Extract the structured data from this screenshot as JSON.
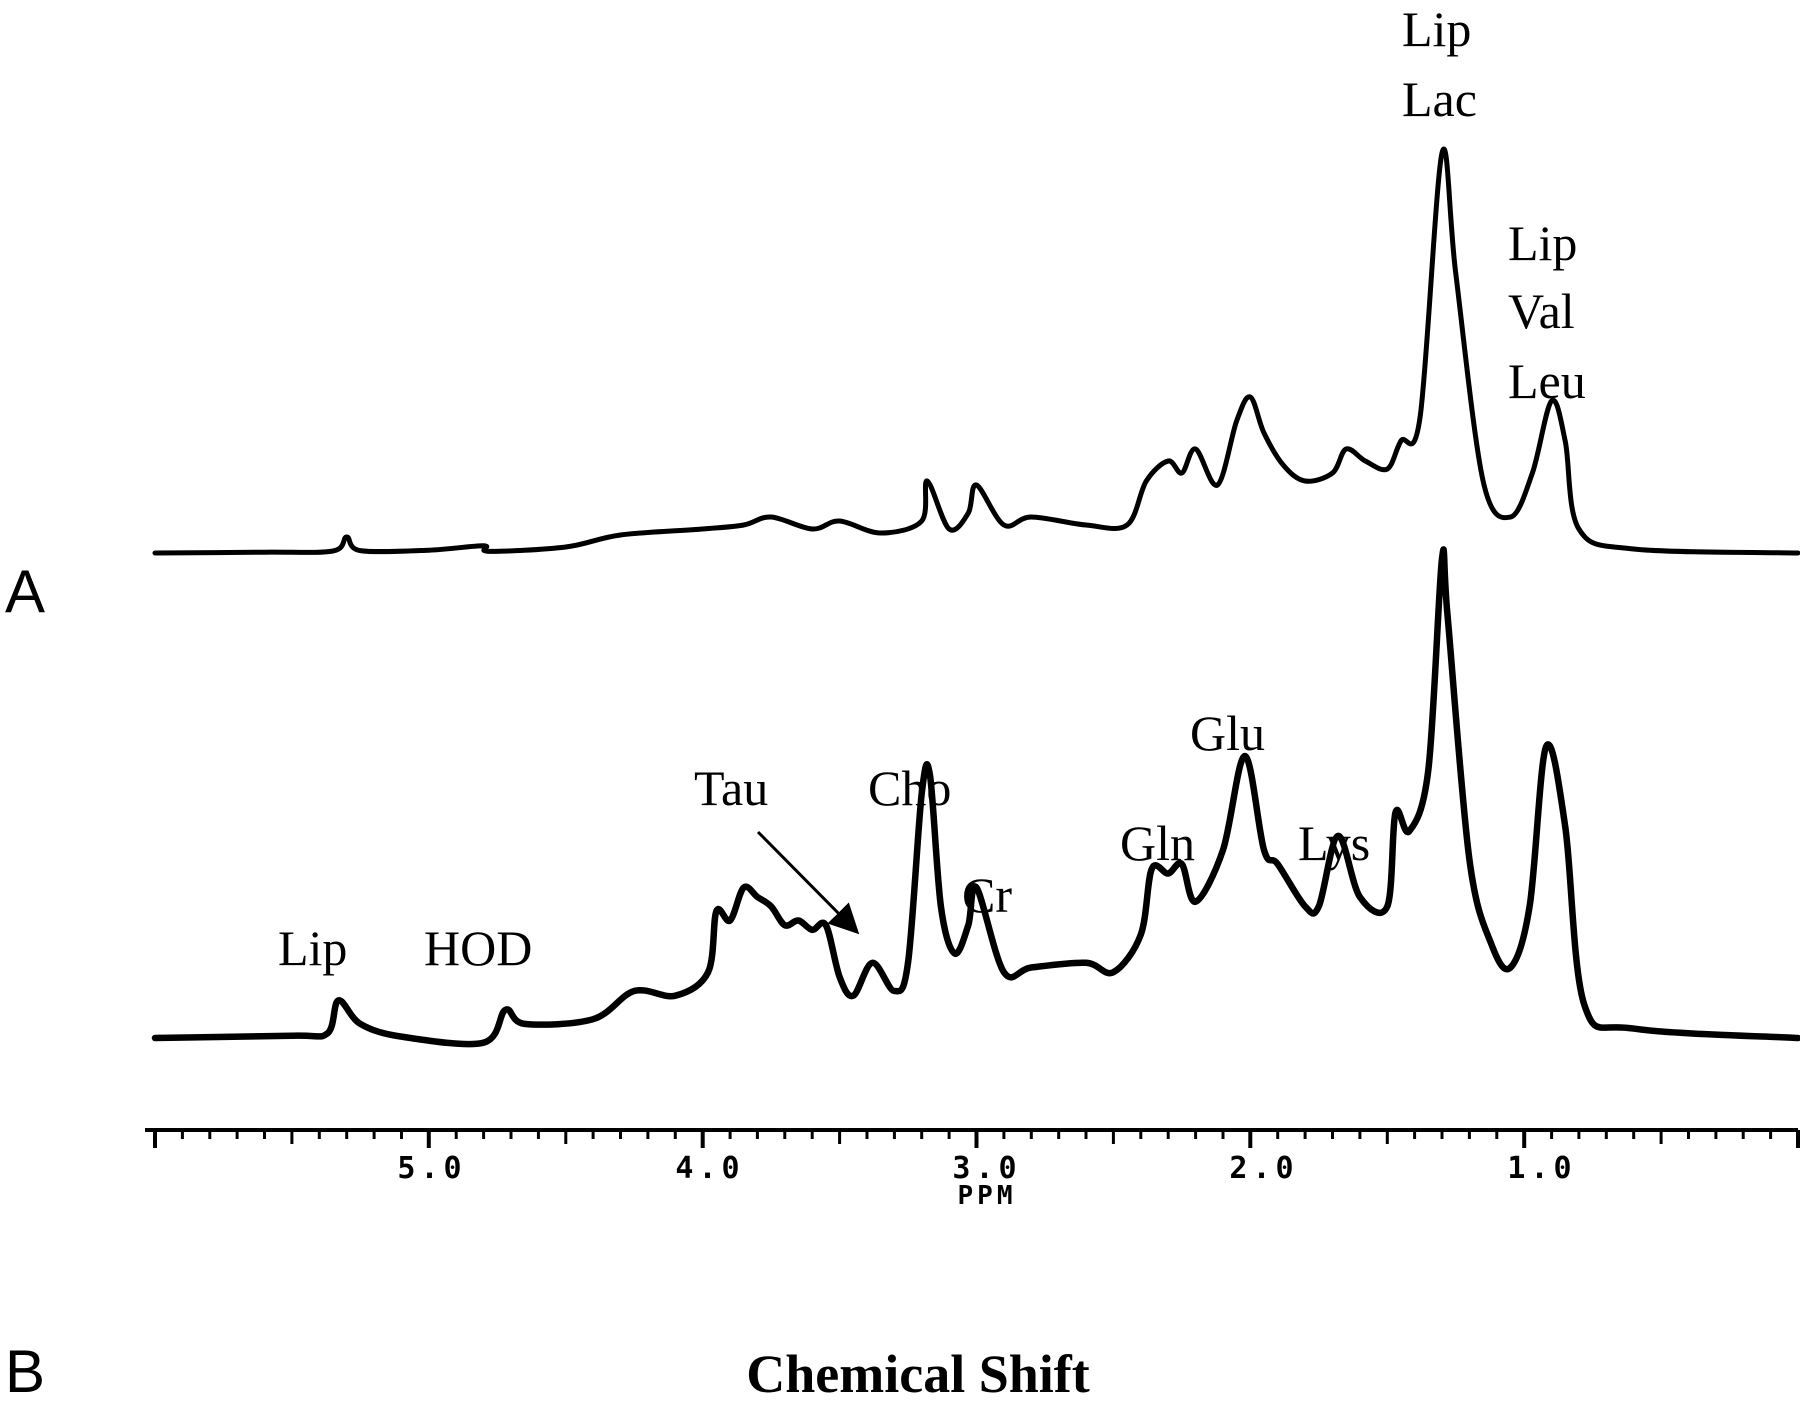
{
  "chart_data": {
    "type": "line",
    "xlabel": "Chemical Shift",
    "axis_unit": "PPM",
    "xlim": [
      6.0,
      0.0
    ],
    "x_reversed": true,
    "x_ticks": [
      "5.0",
      "4.0",
      "3.0",
      "2.0",
      "1.0"
    ],
    "grid": false,
    "series": [
      {
        "panel": "A",
        "points": [
          [
            6.0,
            0
          ],
          [
            5.6,
            0.2
          ],
          [
            5.35,
            0.5
          ],
          [
            5.3,
            4
          ],
          [
            5.25,
            0.6
          ],
          [
            5.0,
            0.7
          ],
          [
            4.8,
            1.8
          ],
          [
            4.78,
            0.4
          ],
          [
            4.5,
            1.5
          ],
          [
            4.3,
            4.5
          ],
          [
            4.0,
            6
          ],
          [
            3.85,
            7
          ],
          [
            3.75,
            9
          ],
          [
            3.6,
            6
          ],
          [
            3.5,
            8
          ],
          [
            3.35,
            5
          ],
          [
            3.2,
            8
          ],
          [
            3.18,
            18
          ],
          [
            3.1,
            6
          ],
          [
            3.03,
            10
          ],
          [
            3.0,
            17
          ],
          [
            2.9,
            7
          ],
          [
            2.8,
            9
          ],
          [
            2.6,
            7
          ],
          [
            2.45,
            7
          ],
          [
            2.38,
            18
          ],
          [
            2.3,
            23
          ],
          [
            2.25,
            20
          ],
          [
            2.2,
            26
          ],
          [
            2.12,
            17
          ],
          [
            2.05,
            33
          ],
          [
            2.0,
            39
          ],
          [
            1.95,
            30
          ],
          [
            1.88,
            22
          ],
          [
            1.8,
            18
          ],
          [
            1.7,
            20
          ],
          [
            1.65,
            26
          ],
          [
            1.58,
            23
          ],
          [
            1.5,
            21
          ],
          [
            1.45,
            28
          ],
          [
            1.38,
            34
          ],
          [
            1.3,
            100
          ],
          [
            1.25,
            70
          ],
          [
            1.15,
            18
          ],
          [
            1.05,
            9
          ],
          [
            0.97,
            20
          ],
          [
            0.9,
            38
          ],
          [
            0.85,
            28
          ],
          [
            0.8,
            6
          ],
          [
            0.6,
            1
          ],
          [
            0.0,
            0
          ]
        ]
      },
      {
        "panel": "B",
        "points": [
          [
            6.0,
            0
          ],
          [
            5.5,
            0.5
          ],
          [
            5.37,
            1
          ],
          [
            5.33,
            8
          ],
          [
            5.25,
            3
          ],
          [
            5.1,
            0.3
          ],
          [
            4.8,
            -1
          ],
          [
            4.72,
            6
          ],
          [
            4.65,
            3
          ],
          [
            4.4,
            4
          ],
          [
            4.25,
            10
          ],
          [
            4.1,
            9
          ],
          [
            3.98,
            14
          ],
          [
            3.95,
            27
          ],
          [
            3.9,
            25
          ],
          [
            3.85,
            32
          ],
          [
            3.8,
            30
          ],
          [
            3.75,
            28
          ],
          [
            3.7,
            24
          ],
          [
            3.65,
            25
          ],
          [
            3.6,
            23
          ],
          [
            3.55,
            24
          ],
          [
            3.5,
            13
          ],
          [
            3.45,
            9
          ],
          [
            3.38,
            16
          ],
          [
            3.3,
            10
          ],
          [
            3.25,
            16
          ],
          [
            3.2,
            52
          ],
          [
            3.17,
            56
          ],
          [
            3.13,
            28
          ],
          [
            3.08,
            18
          ],
          [
            3.03,
            24
          ],
          [
            3.0,
            32
          ],
          [
            2.9,
            14
          ],
          [
            2.8,
            15
          ],
          [
            2.6,
            16
          ],
          [
            2.5,
            14
          ],
          [
            2.4,
            22
          ],
          [
            2.36,
            36
          ],
          [
            2.3,
            35
          ],
          [
            2.25,
            37
          ],
          [
            2.2,
            29
          ],
          [
            2.1,
            40
          ],
          [
            2.02,
            60
          ],
          [
            1.95,
            40
          ],
          [
            1.9,
            37
          ],
          [
            1.8,
            28
          ],
          [
            1.75,
            28
          ],
          [
            1.68,
            43
          ],
          [
            1.6,
            30
          ],
          [
            1.5,
            28
          ],
          [
            1.47,
            48
          ],
          [
            1.42,
            44
          ],
          [
            1.35,
            57
          ],
          [
            1.3,
            102
          ],
          [
            1.28,
            90
          ],
          [
            1.2,
            38
          ],
          [
            1.12,
            20
          ],
          [
            1.05,
            15
          ],
          [
            0.98,
            28
          ],
          [
            0.92,
            62
          ],
          [
            0.85,
            45
          ],
          [
            0.78,
            7
          ],
          [
            0.6,
            2
          ],
          [
            0.0,
            0
          ]
        ]
      }
    ],
    "panel_letters": [
      "A",
      "B"
    ],
    "annotations": {
      "A": [
        {
          "lines": [
            "Lip",
            "Lac"
          ],
          "ppm": 1.3
        },
        {
          "lines": [
            "Lip",
            "Val",
            "Leu"
          ],
          "ppm": 0.9
        }
      ],
      "B": [
        {
          "text": "Lip",
          "ppm": 5.32
        },
        {
          "text": "HOD",
          "ppm": 4.72
        },
        {
          "text": "Tau",
          "ppm": 3.8,
          "arrow_to_ppm": 3.38
        },
        {
          "text": "Cho",
          "ppm": 3.18
        },
        {
          "text": "Cr",
          "ppm": 3.0
        },
        {
          "text": "Gln",
          "ppm": 2.3
        },
        {
          "text": "Glu",
          "ppm": 2.0
        },
        {
          "text": "Lys",
          "ppm": 1.68
        }
      ]
    }
  }
}
